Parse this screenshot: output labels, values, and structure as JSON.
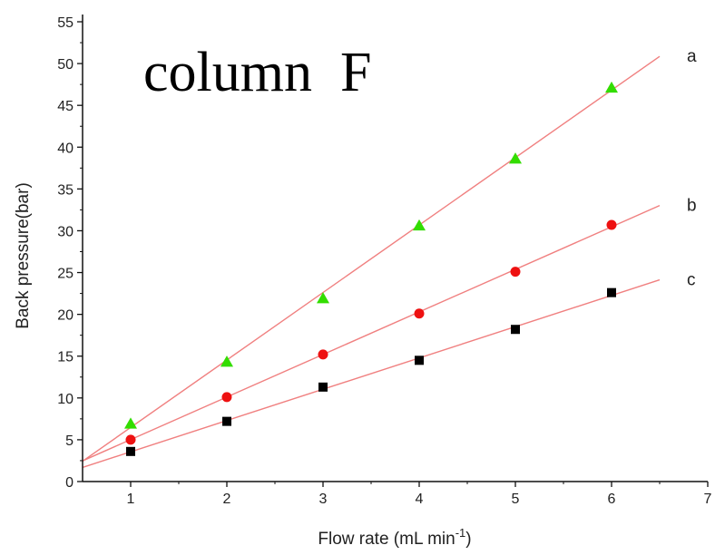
{
  "chart_data": {
    "type": "scatter",
    "title": "column  F",
    "xlabel": "Flow rate (mL min",
    "xlabel_sup": "-1",
    "xlabel_end": ")",
    "ylabel": "Back pressure(bar)",
    "xlim": [
      0.5,
      7
    ],
    "ylim": [
      0,
      55
    ],
    "x_ticks": [
      1,
      2,
      3,
      4,
      5,
      6,
      7
    ],
    "y_ticks": [
      0,
      5,
      10,
      15,
      20,
      25,
      30,
      35,
      40,
      45,
      50,
      55
    ],
    "fit_line_color": "#f08080",
    "series": [
      {
        "name": "a",
        "marker": "triangle",
        "color": "#33dd00",
        "x": [
          1,
          2,
          3,
          4,
          5,
          6
        ],
        "y": [
          6.9,
          14.3,
          21.9,
          30.6,
          38.6,
          47.1
        ],
        "fit": {
          "slope": 8.07,
          "intercept": -1.6,
          "x_range": [
            0.5,
            6.5
          ]
        }
      },
      {
        "name": "b",
        "marker": "circle",
        "color": "#ee1111",
        "x": [
          1,
          2,
          3,
          4,
          5,
          6
        ],
        "y": [
          5.0,
          10.1,
          15.2,
          20.1,
          25.1,
          30.7
        ],
        "fit": {
          "slope": 5.09,
          "intercept": -0.07,
          "x_range": [
            0.5,
            6.5
          ]
        }
      },
      {
        "name": "c",
        "marker": "square",
        "color": "#000000",
        "x": [
          1,
          2,
          3,
          4,
          5,
          6
        ],
        "y": [
          3.6,
          7.2,
          11.3,
          14.5,
          18.2,
          22.6
        ],
        "fit": {
          "slope": 3.74,
          "intercept": -0.18,
          "x_range": [
            0.5,
            6.5
          ]
        }
      }
    ]
  }
}
